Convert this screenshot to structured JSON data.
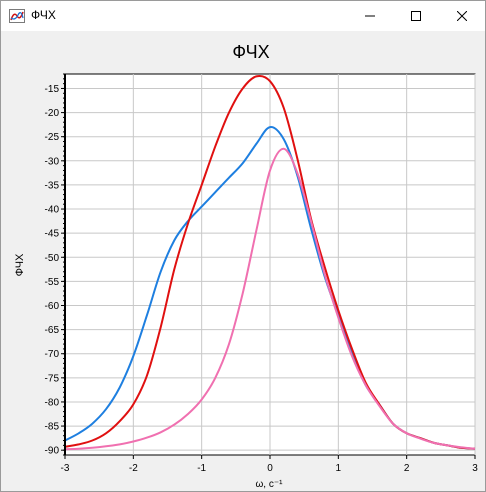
{
  "window": {
    "title": "ФЧХ",
    "icon": "chart-app-icon",
    "buttons": [
      "minimize-icon",
      "maximize-icon",
      "close-icon"
    ]
  },
  "chart_data": {
    "type": "line",
    "title": "ФЧХ",
    "xlabel": "ω, с⁻¹",
    "ylabel": "ФЧХ",
    "xlim": [
      -3,
      3
    ],
    "ylim": [
      -91,
      -12
    ],
    "xticks": [
      -3,
      -2,
      -1,
      0,
      1,
      2,
      3
    ],
    "yticks": [
      -90,
      -85,
      -80,
      -75,
      -70,
      -65,
      -60,
      -55,
      -50,
      -45,
      -40,
      -35,
      -30,
      -25,
      -20,
      -15
    ],
    "grid": true,
    "legend": "none",
    "series": [
      {
        "color": "#1e7fe0",
        "x": [
          -3,
          -2.8,
          -2.6,
          -2.4,
          -2.2,
          -2.0,
          -1.8,
          -1.6,
          -1.4,
          -1.2,
          -1.0,
          -0.8,
          -0.6,
          -0.4,
          -0.2,
          0.0,
          0.2,
          0.4,
          0.6,
          0.8,
          1.0,
          1.2,
          1.4,
          1.6,
          1.8,
          2.0,
          2.2,
          2.4,
          2.6,
          2.8,
          3.0
        ],
        "y": [
          -88,
          -86.5,
          -84.5,
          -81.5,
          -77,
          -70.5,
          -62,
          -53,
          -46.5,
          -42.5,
          -39.5,
          -36.5,
          -33.5,
          -30.5,
          -26.5,
          -23,
          -25.5,
          -33,
          -44,
          -54,
          -62,
          -70,
          -76.5,
          -80.5,
          -84.5,
          -86.5,
          -87.5,
          -88.5,
          -89,
          -89.5,
          -89.7
        ]
      },
      {
        "color": "#e01010",
        "x": [
          -3,
          -2.8,
          -2.6,
          -2.4,
          -2.2,
          -2.0,
          -1.8,
          -1.6,
          -1.4,
          -1.2,
          -1.0,
          -0.8,
          -0.6,
          -0.4,
          -0.2,
          0.0,
          0.2,
          0.4,
          0.6,
          0.8,
          1.0,
          1.2,
          1.4,
          1.6,
          1.8,
          2.0,
          2.2,
          2.4,
          2.6,
          2.8,
          3.0
        ],
        "y": [
          -89.3,
          -88.8,
          -88,
          -86.5,
          -84,
          -80.5,
          -74.5,
          -64.5,
          -52.5,
          -43,
          -35,
          -27,
          -20,
          -15,
          -12.5,
          -13.5,
          -19,
          -29.5,
          -42,
          -52,
          -61,
          -69,
          -76,
          -80.5,
          -84.5,
          -86.5,
          -87.5,
          -88.5,
          -89,
          -89.5,
          -89.7
        ]
      },
      {
        "color": "#f070b0",
        "x": [
          -3,
          -2.8,
          -2.6,
          -2.4,
          -2.2,
          -2.0,
          -1.8,
          -1.6,
          -1.4,
          -1.2,
          -1.0,
          -0.8,
          -0.6,
          -0.4,
          -0.2,
          0.0,
          0.2,
          0.4,
          0.6,
          0.8,
          1.0,
          1.2,
          1.4,
          1.6,
          1.8,
          2.0,
          2.2,
          2.4,
          2.6,
          2.8,
          3.0
        ],
        "y": [
          -89.8,
          -89.7,
          -89.5,
          -89.2,
          -88.8,
          -88.2,
          -87.4,
          -86.3,
          -84.7,
          -82.5,
          -79.5,
          -75,
          -68,
          -57.5,
          -44.5,
          -32,
          -27.5,
          -32.5,
          -42.5,
          -53.5,
          -62.5,
          -70.5,
          -76.5,
          -80.8,
          -84.5,
          -86.5,
          -87.6,
          -88.5,
          -89,
          -89.4,
          -89.7
        ]
      }
    ]
  }
}
